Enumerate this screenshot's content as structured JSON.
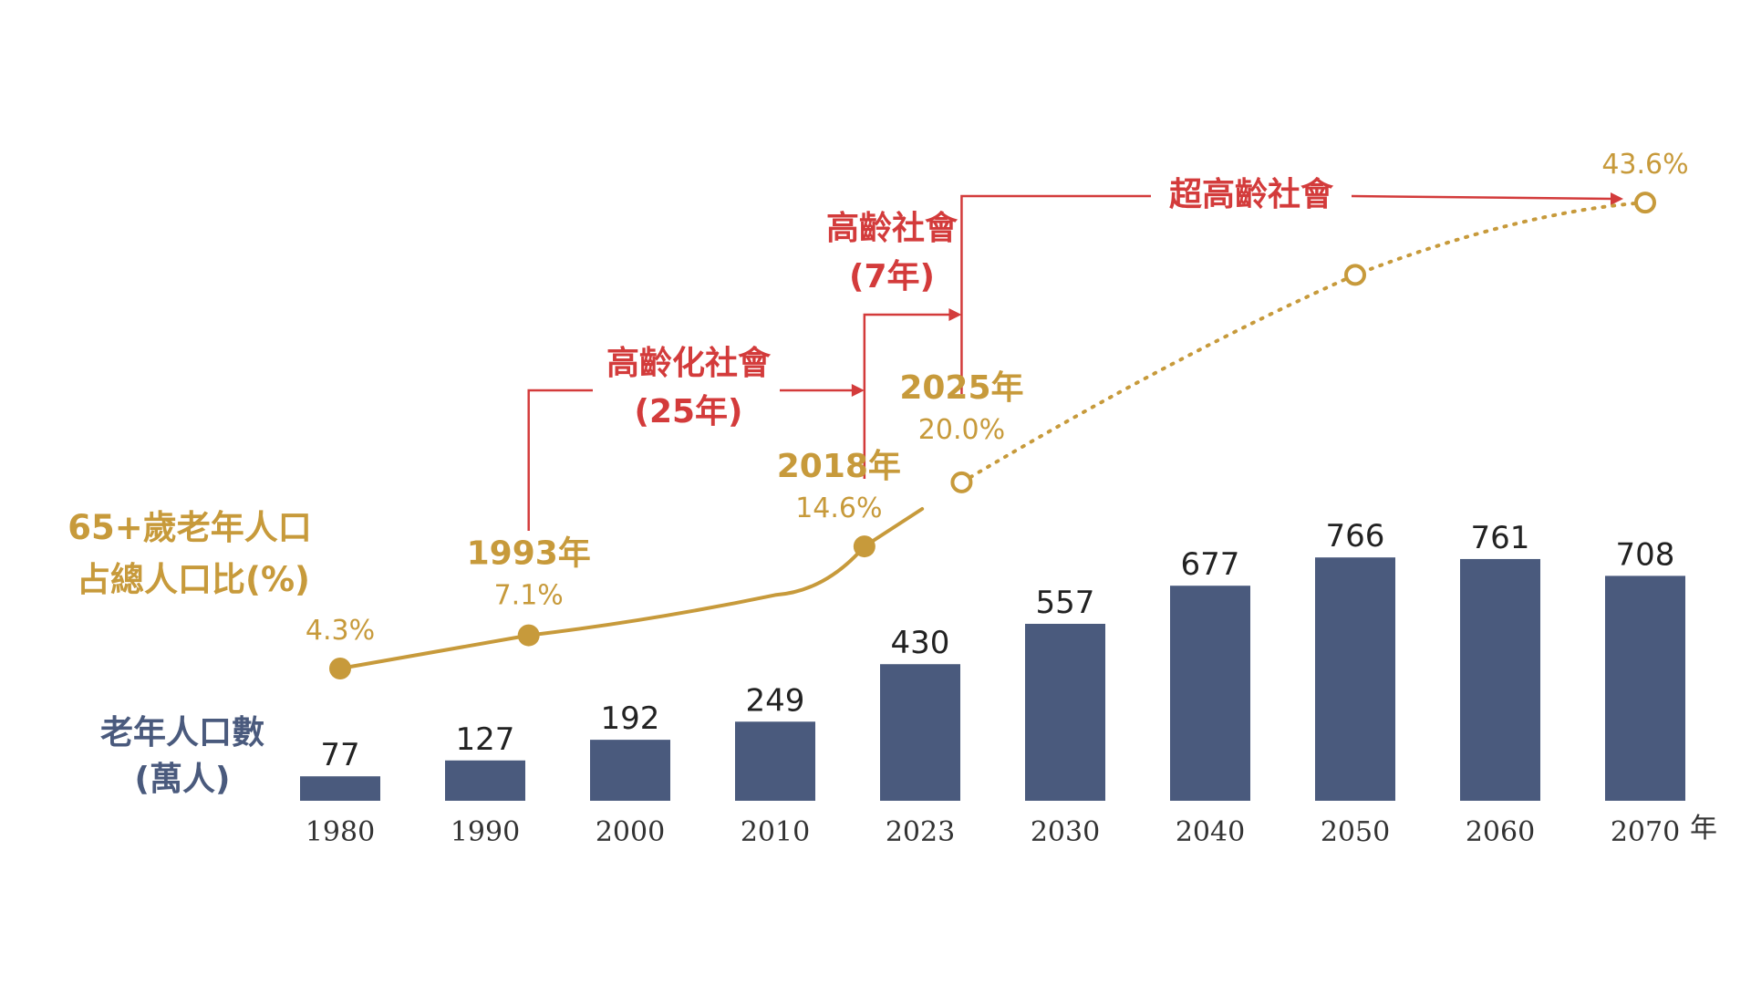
{
  "chart_data": {
    "type": "bar",
    "categories": [
      "1980",
      "1990",
      "2000",
      "2010",
      "2023",
      "2030",
      "2040",
      "2050",
      "2060",
      "2070"
    ],
    "x_unit": "年",
    "series": [
      {
        "name": "老年人口數(萬人)",
        "label_lines": [
          "老年人口數",
          "(萬人)"
        ],
        "type": "bar",
        "values": [
          77,
          127,
          192,
          249,
          430,
          557,
          677,
          766,
          761,
          708
        ],
        "color": "#4a5a7d"
      },
      {
        "name": "65+歲老年人口占總人口比(%)",
        "label_lines": [
          "65+歲老年人口",
          "占總人口比(%)"
        ],
        "type": "line",
        "color": "#c79a3b",
        "points": [
          {
            "x": 1980,
            "value": 4.3,
            "label": "4.3%",
            "style": "solid",
            "marker": "filled"
          },
          {
            "x": 1993,
            "value": 7.1,
            "label": "7.1%",
            "year_label": "1993年",
            "style": "solid",
            "marker": "filled"
          },
          {
            "x": 2018,
            "value": 14.6,
            "label": "14.6%",
            "year_label": "2018年",
            "style": "solid",
            "marker": "filled"
          },
          {
            "x": 2025,
            "value": 20.0,
            "label": "20.0%",
            "year_label": "2025年",
            "style": "projected",
            "marker": "hollow"
          },
          {
            "x": 2050,
            "value": 37.5,
            "label": "",
            "style": "projected",
            "marker": "hollow"
          },
          {
            "x": 2070,
            "value": 43.6,
            "label": "43.6%",
            "style": "projected",
            "marker": "hollow"
          }
        ]
      }
    ],
    "stages": [
      {
        "name": "高齡化社會",
        "duration": "(25年)",
        "from": 1993,
        "to": 2018
      },
      {
        "name": "高齡社會",
        "duration": "(7年)",
        "from": 2018,
        "to": 2025
      },
      {
        "name": "超高齡社會",
        "duration": "",
        "from": 2025,
        "to": "2070+"
      }
    ],
    "colors": {
      "bar": "#4a5a7d",
      "line": "#c79a3b",
      "stage": "#d33b3b",
      "axis_text": "#333333"
    }
  }
}
